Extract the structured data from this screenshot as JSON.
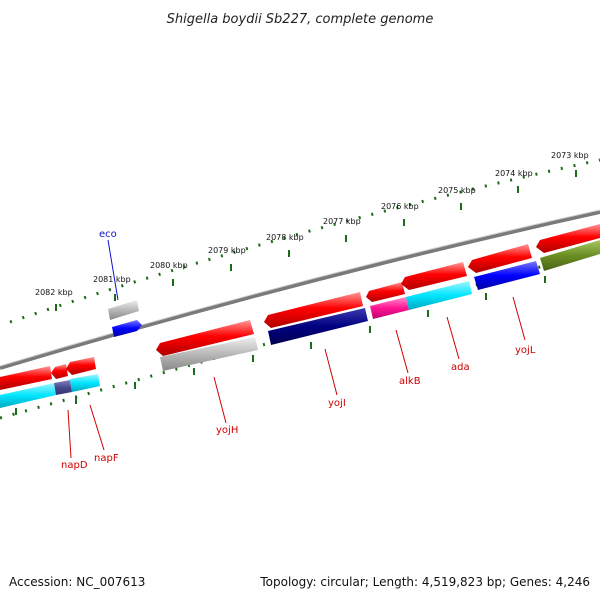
{
  "header": {
    "title": "Shigella boydii Sb227, complete genome"
  },
  "footer": {
    "accession": "Accession: NC_007613",
    "summary": "Topology: circular; Length: 4,519,823 bp; Genes: 4,246"
  },
  "scale": {
    "ticks": [
      "2082 kbp",
      "2081 kbp",
      "2080 kbp",
      "2079 kbp",
      "2078 kbp",
      "2077 kbp",
      "2076 kbp",
      "2075 kbp",
      "2074 kbp",
      "2073 kbp"
    ]
  },
  "genes": [
    {
      "name": "eco",
      "color": "#1010cc"
    },
    {
      "name": "napD",
      "color": "#d00000"
    },
    {
      "name": "napF",
      "color": "#d00000"
    },
    {
      "name": "yojH",
      "color": "#d00000"
    },
    {
      "name": "yojI",
      "color": "#d00000"
    },
    {
      "name": "alkB",
      "color": "#d00000"
    },
    {
      "name": "ada",
      "color": "#d00000"
    },
    {
      "name": "yojL",
      "color": "#d00000"
    }
  ],
  "colors": {
    "cds_red": "#ff0000",
    "rrna_cyan": "#00e5ff",
    "blue": "#0000ff",
    "navy": "#000080",
    "gray": "#b0b0b0",
    "magenta": "#ff1493",
    "olive": "#6b8e23",
    "dotted_green": "#1a6b1a",
    "backbone": "#7a7a7a"
  }
}
